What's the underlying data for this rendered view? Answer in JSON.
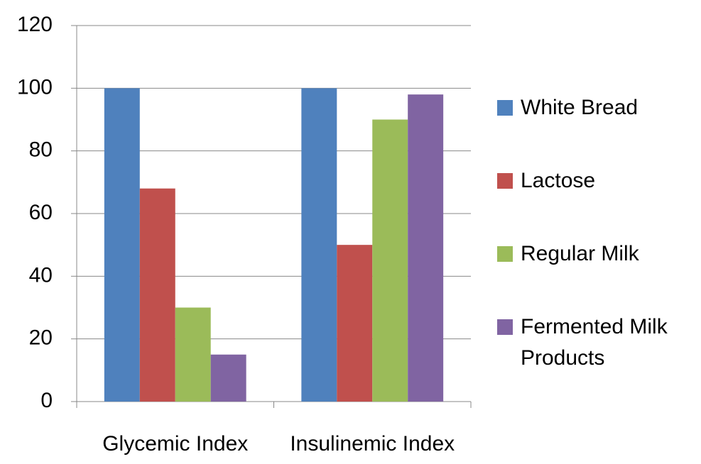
{
  "chart_data": {
    "type": "bar",
    "categories": [
      "Glycemic Index",
      "Insulinemic Index"
    ],
    "series": [
      {
        "name": "White Bread",
        "color": "#4f81bd",
        "values": [
          100,
          100
        ]
      },
      {
        "name": "Lactose",
        "color": "#c0504d",
        "values": [
          68,
          50
        ]
      },
      {
        "name": "Regular Milk",
        "color": "#9bbb59",
        "values": [
          30,
          90
        ]
      },
      {
        "name": "Fermented Milk Products",
        "color": "#8064a2",
        "values": [
          15,
          98
        ]
      }
    ],
    "ylim": [
      0,
      120
    ],
    "yticks": [
      0,
      20,
      40,
      60,
      80,
      100,
      120
    ],
    "grid": true,
    "legend": "right"
  }
}
